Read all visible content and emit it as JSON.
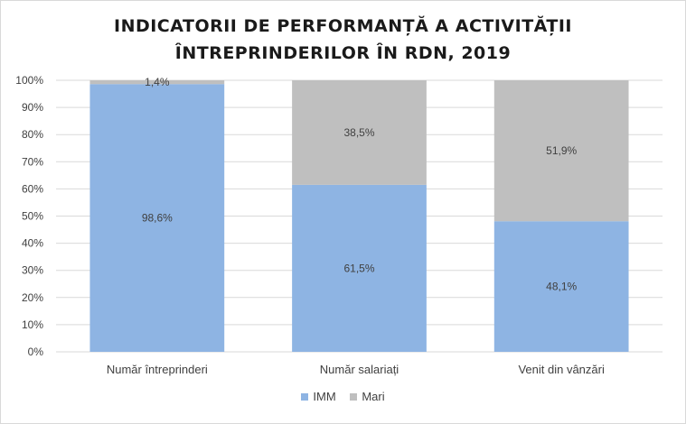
{
  "chart_data": {
    "type": "bar",
    "stacked": true,
    "normalized": true,
    "title_line1": "INDICATORII DE PERFORMANȚĂ A ACTIVITĂȚII",
    "title_line2": "ÎNTREPRINDERILOR ÎN RDN, 2019",
    "categories": [
      "Număr întreprinderi",
      "Număr salariați",
      "Venit din vânzări"
    ],
    "series": [
      {
        "name": "IMM",
        "values": [
          98.6,
          61.5,
          48.1
        ],
        "labels": [
          "98,6%",
          "61,5%",
          "48,1%"
        ],
        "color": "#8eb4e3"
      },
      {
        "name": "Mari",
        "values": [
          1.4,
          38.5,
          51.9
        ],
        "labels": [
          "1,4%",
          "38,5%",
          "51,9%"
        ],
        "color": "#bfbfbf"
      }
    ],
    "yticks": [
      "0%",
      "10%",
      "20%",
      "30%",
      "40%",
      "50%",
      "60%",
      "70%",
      "80%",
      "90%",
      "100%"
    ],
    "ylim": [
      0,
      100
    ],
    "grid": true,
    "legend_position": "bottom",
    "gridline_color": "#d9d9d9"
  }
}
